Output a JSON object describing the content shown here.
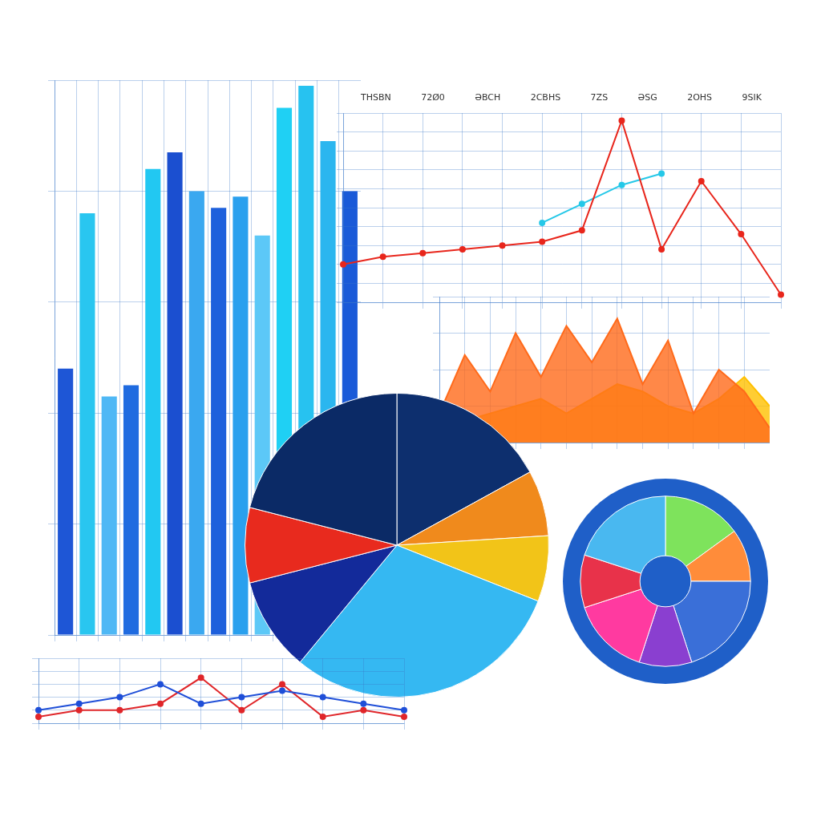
{
  "chart_data": [
    {
      "type": "bar",
      "categories": [
        null,
        null,
        null,
        null,
        null,
        null,
        null,
        null,
        null,
        null,
        null,
        null,
        null,
        null
      ],
      "values": [
        48,
        76,
        43,
        45,
        84,
        87,
        80,
        77,
        79,
        72,
        95,
        99,
        89,
        80
      ],
      "colors": [
        "#1e56d6",
        "#29c6f0",
        "#4fb8f5",
        "#1f6be0",
        "#22c8f2",
        "#1b4fd0",
        "#3aa8f0",
        "#1e60dc",
        "#2aa0ee",
        "#5cc8f7",
        "#1fd0f4",
        "#27c2f0",
        "#2bb6ef",
        "#1a5ad8"
      ],
      "ylim": [
        0,
        100
      ],
      "yticks": [
        0,
        20,
        40,
        60,
        80,
        100
      ],
      "grid": true,
      "tick_labels": false
    },
    {
      "type": "line",
      "annotations": [
        "THSBN",
        "72Ø0",
        "ƏBCH",
        "2CBHS",
        "7ZS",
        "ƏSG",
        "2OHS",
        "9SIK"
      ],
      "categories": [
        null,
        null,
        null,
        null,
        null,
        null,
        null,
        null,
        null,
        null,
        null,
        null
      ],
      "series": [
        {
          "color": "#e8261c",
          "values": [
            20,
            24,
            26,
            28,
            30,
            32,
            38,
            96,
            28,
            64,
            36,
            4
          ]
        },
        {
          "color": "#25c8e8",
          "values": [
            null,
            null,
            null,
            null,
            null,
            42,
            52,
            62,
            68,
            null,
            null,
            null
          ]
        }
      ],
      "ylim": [
        0,
        100
      ],
      "yticks": [
        0,
        10,
        20,
        30,
        40,
        50,
        60,
        70,
        80,
        90,
        100
      ],
      "grid": true,
      "tick_labels": false
    },
    {
      "type": "area",
      "categories": [
        null,
        null,
        null,
        null,
        null,
        null,
        null,
        null,
        null,
        null,
        null,
        null,
        null,
        null
      ],
      "series": [
        {
          "color": "#ff6a1a",
          "values": [
            20,
            60,
            35,
            75,
            45,
            80,
            55,
            85,
            40,
            70,
            20,
            50,
            35,
            10
          ]
        },
        {
          "color": "#ffc000",
          "values": [
            10,
            15,
            20,
            25,
            30,
            20,
            30,
            40,
            35,
            25,
            20,
            30,
            45,
            25
          ]
        }
      ],
      "ylim": [
        0,
        100
      ],
      "yticks": [
        0,
        25,
        50,
        75,
        100
      ],
      "grid": true,
      "tick_labels": false
    },
    {
      "type": "pie",
      "categories": [
        null,
        null,
        null,
        null,
        null,
        null,
        null
      ],
      "values": [
        17,
        7,
        7,
        30,
        10,
        8,
        21
      ],
      "colors": [
        "#0d2f6e",
        "#f08a1c",
        "#f2c418",
        "#35b8f2",
        "#132a9a",
        "#e82a1e",
        "#0b2a66"
      ]
    },
    {
      "type": "doughnut",
      "categories": [
        null,
        null,
        null,
        null,
        null,
        null,
        null
      ],
      "values": [
        15,
        10,
        20,
        10,
        15,
        10,
        20
      ],
      "colors": [
        "#7ee35c",
        "#ff8c3a",
        "#3a6fd8",
        "#8a3fd0",
        "#ff3aa0",
        "#e8324a",
        "#49b8f0"
      ]
    },
    {
      "type": "line",
      "categories": [
        null,
        null,
        null,
        null,
        null,
        null,
        null,
        null,
        null,
        null
      ],
      "series": [
        {
          "color": "#1f4fd8",
          "values": [
            2,
            3,
            4,
            6,
            3,
            4,
            5,
            4,
            3,
            2
          ]
        },
        {
          "color": "#e0262a",
          "values": [
            1,
            2,
            2,
            3,
            7,
            2,
            6,
            1,
            2,
            1
          ]
        }
      ],
      "ylim": [
        0,
        10
      ],
      "yticks": [
        0,
        2,
        4,
        6,
        8,
        10
      ],
      "grid": true,
      "tick_labels": false
    }
  ]
}
